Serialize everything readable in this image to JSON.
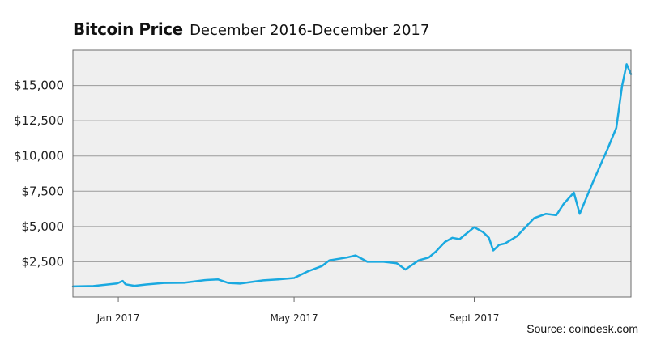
{
  "header": {
    "title": "Bitcoin Price",
    "subtitle": "December 2016-December 2017"
  },
  "source": "Source: coindesk.com",
  "colors": {
    "line": "#1aa9e0",
    "plot_background": "#efefef",
    "grid": "#9a9a9a",
    "frame": "#6b6b6b"
  },
  "chart_data": {
    "type": "line",
    "title": "Bitcoin Price",
    "subtitle": "December 2016-December 2017",
    "xlabel": "",
    "ylabel": "",
    "grid": true,
    "legend": "none",
    "xlim": [
      "2016-12-01",
      "2017-12-17"
    ],
    "ylim": [
      0,
      17500
    ],
    "y_ticks": [
      {
        "value": 2500,
        "label": "$2,500"
      },
      {
        "value": 5000,
        "label": "$5,000"
      },
      {
        "value": 7500,
        "label": "$7,500"
      },
      {
        "value": 10000,
        "label": "$10,000"
      },
      {
        "value": 12500,
        "label": "$12,500"
      },
      {
        "value": 15000,
        "label": "$15,000"
      }
    ],
    "x_ticks": [
      {
        "value": "2017-01-01",
        "label": "Jan 2017"
      },
      {
        "value": "2017-05-01",
        "label": "May 2017"
      },
      {
        "value": "2017-09-01",
        "label": "Sept 2017"
      }
    ],
    "series": [
      {
        "x": [
          "2016-12-01",
          "2016-12-15",
          "2016-12-31",
          "2017-01-04",
          "2017-01-06",
          "2017-01-12",
          "2017-01-20",
          "2017-02-01",
          "2017-02-15",
          "2017-03-01",
          "2017-03-10",
          "2017-03-17",
          "2017-03-25",
          "2017-04-10",
          "2017-04-20",
          "2017-05-01",
          "2017-05-10",
          "2017-05-20",
          "2017-05-25",
          "2017-06-06",
          "2017-06-12",
          "2017-06-20",
          "2017-07-01",
          "2017-07-10",
          "2017-07-16",
          "2017-07-25",
          "2017-08-01",
          "2017-08-06",
          "2017-08-12",
          "2017-08-17",
          "2017-08-22",
          "2017-09-01",
          "2017-09-07",
          "2017-09-11",
          "2017-09-14",
          "2017-09-18",
          "2017-09-22",
          "2017-09-30",
          "2017-10-12",
          "2017-10-20",
          "2017-10-27",
          "2017-11-01",
          "2017-11-08",
          "2017-11-12",
          "2017-11-20",
          "2017-11-28",
          "2017-12-01",
          "2017-12-07",
          "2017-12-11",
          "2017-12-14",
          "2017-12-17"
        ],
        "y": [
          750,
          780,
          960,
          1140,
          900,
          800,
          890,
          1000,
          1010,
          1200,
          1250,
          1000,
          950,
          1180,
          1250,
          1350,
          1800,
          2200,
          2600,
          2800,
          2950,
          2500,
          2500,
          2400,
          1950,
          2600,
          2800,
          3250,
          3900,
          4200,
          4100,
          4950,
          4600,
          4200,
          3300,
          3700,
          3800,
          4300,
          5600,
          5900,
          5800,
          6600,
          7400,
          5900,
          7900,
          9800,
          10500,
          12000,
          15000,
          16500,
          15800
        ]
      }
    ]
  }
}
